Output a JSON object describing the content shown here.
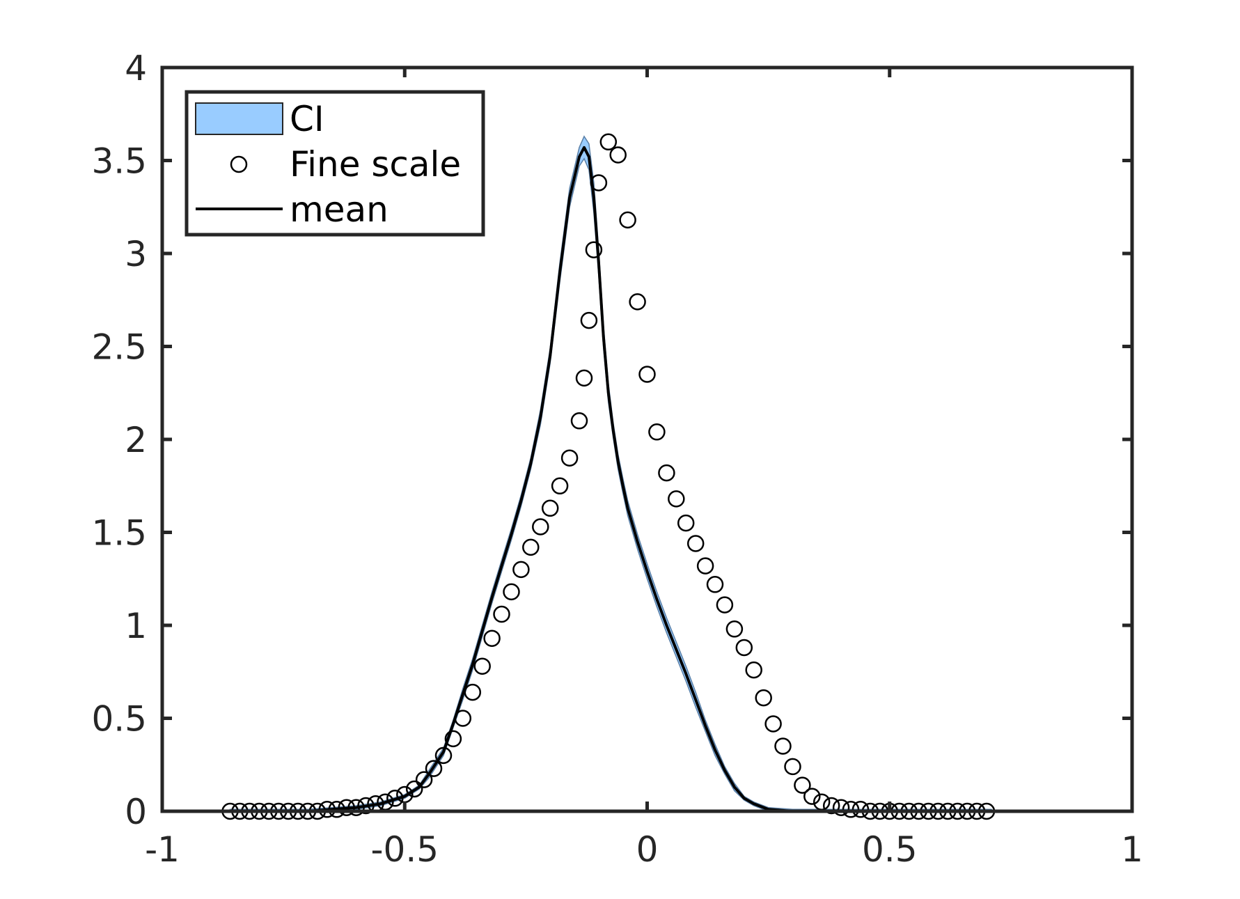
{
  "chart_data": {
    "type": "line",
    "title": "",
    "xlabel": "",
    "ylabel": "",
    "xlim": [
      -1,
      1
    ],
    "ylim": [
      0,
      4
    ],
    "x_ticks": [
      -1,
      -0.5,
      0,
      0.5,
      1
    ],
    "x_tick_labels": [
      "-1",
      "-0.5",
      "0",
      "0.5",
      "1"
    ],
    "y_ticks": [
      0,
      0.5,
      1,
      1.5,
      2,
      2.5,
      3,
      3.5,
      4
    ],
    "y_tick_labels": [
      "0",
      "0.5",
      "1",
      "1.5",
      "2",
      "2.5",
      "3",
      "3.5",
      "4"
    ],
    "grid": false,
    "legend_placement": "top-left",
    "legend": [
      {
        "label": "CI",
        "kind": "patch",
        "color": "#99CCFF"
      },
      {
        "label": "Fine scale",
        "kind": "marker"
      },
      {
        "label": "mean",
        "kind": "line",
        "color": "#000000"
      }
    ],
    "series": [
      {
        "name": "mean",
        "x": [
          -0.86,
          -0.8,
          -0.75,
          -0.7,
          -0.65,
          -0.6,
          -0.55,
          -0.5,
          -0.47,
          -0.45,
          -0.42,
          -0.4,
          -0.38,
          -0.36,
          -0.34,
          -0.32,
          -0.3,
          -0.28,
          -0.26,
          -0.24,
          -0.22,
          -0.2,
          -0.18,
          -0.16,
          -0.14,
          -0.13,
          -0.12,
          -0.11,
          -0.1,
          -0.09,
          -0.08,
          -0.07,
          -0.06,
          -0.05,
          -0.04,
          -0.02,
          0,
          0.02,
          0.04,
          0.06,
          0.08,
          0.1,
          0.12,
          0.14,
          0.16,
          0.18,
          0.2,
          0.22,
          0.25,
          0.3,
          0.35,
          0.4,
          0.5,
          0.6,
          0.71
        ],
        "y": [
          0,
          0,
          0,
          0,
          0.01,
          0.02,
          0.04,
          0.08,
          0.13,
          0.2,
          0.32,
          0.47,
          0.63,
          0.79,
          0.97,
          1.15,
          1.32,
          1.49,
          1.67,
          1.87,
          2.12,
          2.45,
          2.9,
          3.3,
          3.52,
          3.57,
          3.52,
          3.3,
          2.95,
          2.55,
          2.25,
          2.05,
          1.88,
          1.75,
          1.63,
          1.45,
          1.29,
          1.14,
          1.0,
          0.87,
          0.74,
          0.6,
          0.46,
          0.33,
          0.22,
          0.13,
          0.07,
          0.04,
          0.01,
          0,
          0,
          0,
          0,
          0,
          0
        ]
      },
      {
        "name": "CI",
        "x": [
          -0.86,
          -0.8,
          -0.75,
          -0.7,
          -0.65,
          -0.6,
          -0.55,
          -0.5,
          -0.47,
          -0.45,
          -0.42,
          -0.4,
          -0.38,
          -0.36,
          -0.34,
          -0.32,
          -0.3,
          -0.28,
          -0.26,
          -0.24,
          -0.22,
          -0.2,
          -0.18,
          -0.16,
          -0.14,
          -0.13,
          -0.12,
          -0.11,
          -0.1,
          -0.09,
          -0.08,
          -0.07,
          -0.06,
          -0.05,
          -0.04,
          -0.02,
          0,
          0.02,
          0.04,
          0.06,
          0.08,
          0.1,
          0.12,
          0.14,
          0.16,
          0.18,
          0.2,
          0.22,
          0.25,
          0.3,
          0.35,
          0.4,
          0.5,
          0.6,
          0.71
        ],
        "lower": [
          0,
          0,
          0,
          0,
          0,
          0.01,
          0.03,
          0.07,
          0.12,
          0.18,
          0.3,
          0.45,
          0.6,
          0.76,
          0.94,
          1.12,
          1.29,
          1.46,
          1.64,
          1.84,
          2.08,
          2.41,
          2.85,
          3.25,
          3.47,
          3.51,
          3.45,
          3.22,
          2.88,
          2.49,
          2.2,
          2.01,
          1.84,
          1.71,
          1.59,
          1.41,
          1.25,
          1.1,
          0.96,
          0.83,
          0.7,
          0.56,
          0.43,
          0.3,
          0.2,
          0.11,
          0.06,
          0.03,
          0,
          0,
          0,
          0,
          0,
          0,
          0
        ],
        "upper": [
          0.01,
          0.01,
          0.01,
          0.01,
          0.02,
          0.03,
          0.05,
          0.09,
          0.14,
          0.22,
          0.34,
          0.49,
          0.66,
          0.82,
          1.0,
          1.18,
          1.35,
          1.52,
          1.7,
          1.9,
          2.16,
          2.49,
          2.95,
          3.35,
          3.57,
          3.63,
          3.59,
          3.38,
          3.02,
          2.61,
          2.3,
          2.09,
          1.92,
          1.79,
          1.67,
          1.49,
          1.33,
          1.18,
          1.04,
          0.91,
          0.78,
          0.64,
          0.49,
          0.36,
          0.24,
          0.15,
          0.08,
          0.05,
          0.02,
          0.01,
          0.01,
          0.01,
          0.01,
          0.01,
          0.01
        ]
      },
      {
        "name": "Fine scale",
        "x": [
          -0.86,
          -0.84,
          -0.82,
          -0.8,
          -0.78,
          -0.76,
          -0.74,
          -0.72,
          -0.7,
          -0.68,
          -0.66,
          -0.64,
          -0.62,
          -0.6,
          -0.58,
          -0.56,
          -0.54,
          -0.52,
          -0.5,
          -0.48,
          -0.46,
          -0.44,
          -0.42,
          -0.4,
          -0.38,
          -0.36,
          -0.34,
          -0.32,
          -0.3,
          -0.28,
          -0.26,
          -0.24,
          -0.22,
          -0.2,
          -0.18,
          -0.16,
          -0.14,
          -0.13,
          -0.12,
          -0.11,
          -0.1,
          -0.08,
          -0.06,
          -0.04,
          -0.02,
          0,
          0.02,
          0.04,
          0.06,
          0.08,
          0.1,
          0.12,
          0.14,
          0.16,
          0.18,
          0.2,
          0.22,
          0.24,
          0.26,
          0.28,
          0.3,
          0.32,
          0.34,
          0.36,
          0.38,
          0.4,
          0.42,
          0.44,
          0.46,
          0.48,
          0.5,
          0.52,
          0.54,
          0.56,
          0.58,
          0.6,
          0.62,
          0.64,
          0.66,
          0.68,
          0.7
        ],
        "y": [
          0,
          0,
          0,
          0,
          0,
          0,
          0,
          0,
          0,
          0,
          0.01,
          0.01,
          0.02,
          0.02,
          0.03,
          0.04,
          0.05,
          0.07,
          0.09,
          0.12,
          0.17,
          0.23,
          0.3,
          0.39,
          0.5,
          0.64,
          0.78,
          0.93,
          1.06,
          1.18,
          1.3,
          1.42,
          1.53,
          1.63,
          1.75,
          1.9,
          2.1,
          2.33,
          2.64,
          3.02,
          3.38,
          3.6,
          3.53,
          3.18,
          2.74,
          2.35,
          2.04,
          1.82,
          1.68,
          1.55,
          1.44,
          1.32,
          1.22,
          1.11,
          0.98,
          0.88,
          0.76,
          0.61,
          0.47,
          0.35,
          0.24,
          0.14,
          0.08,
          0.05,
          0.03,
          0.02,
          0.01,
          0.01,
          0,
          0,
          0,
          0,
          0,
          0,
          0,
          0,
          0,
          0,
          0,
          0,
          0
        ],
        "_note_ignore": null
      }
    ]
  }
}
